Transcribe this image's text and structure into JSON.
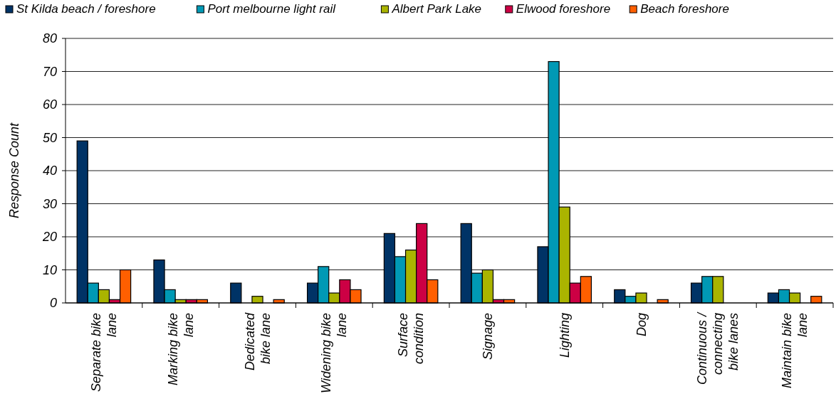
{
  "chart_data": {
    "type": "bar",
    "ylabel": "Response Count",
    "categories": [
      "Separate bike lane",
      "Marking bike lane",
      "Dedicated bike lane",
      "Widening bike lane",
      "Surface condition",
      "Signage",
      "Lighting",
      "Dog",
      "Continuous / connecting bike lanes",
      "Maintain bike lane"
    ],
    "series": [
      {
        "name": "St Kilda beach / foreshore",
        "color": "#003366",
        "values": [
          49,
          13,
          6,
          6,
          21,
          24,
          17,
          4,
          6,
          3
        ]
      },
      {
        "name": "Port melbourne light rail",
        "color": "#0099b5",
        "values": [
          6,
          4,
          0,
          11,
          14,
          9,
          73,
          2,
          8,
          4
        ]
      },
      {
        "name": "Albert Park Lake",
        "color": "#aab400",
        "values": [
          4,
          1,
          2,
          3,
          16,
          10,
          29,
          3,
          8,
          3
        ]
      },
      {
        "name": "Elwood foreshore",
        "color": "#cc0044",
        "values": [
          1,
          1,
          0,
          7,
          24,
          1,
          6,
          0,
          0,
          0
        ]
      },
      {
        "name": "Beach foreshore",
        "color": "#ff5f00",
        "values": [
          10,
          1,
          1,
          4,
          7,
          1,
          8,
          1,
          0,
          2
        ]
      }
    ],
    "ylim": [
      0,
      80
    ],
    "yticks": [
      0,
      10,
      20,
      30,
      40,
      50,
      60,
      70,
      80
    ],
    "grid": "y",
    "legend": "top"
  }
}
